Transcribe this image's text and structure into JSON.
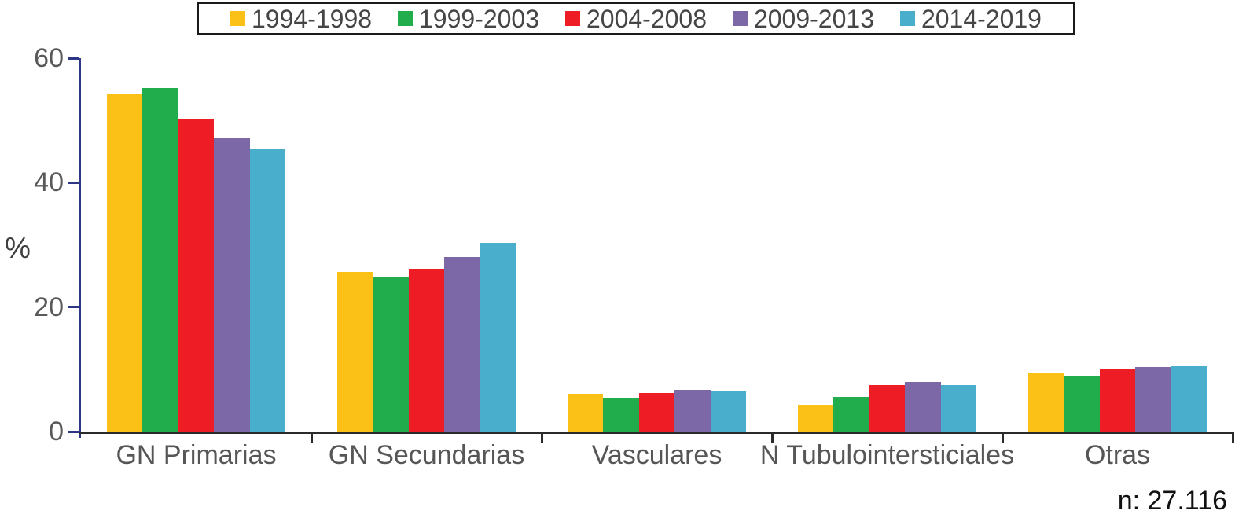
{
  "figure": {
    "ylabel": "%",
    "annotation": "n: 27.116"
  },
  "chart_data": {
    "type": "bar",
    "title": "",
    "xlabel": "",
    "ylabel": "%",
    "ylim": [
      0,
      60
    ],
    "y_ticks": [
      0,
      20,
      40,
      60
    ],
    "grid": false,
    "legend_position": "top",
    "annotation": "n: 27.116",
    "categories": [
      "GN Primarias",
      "GN Secundarias",
      "Vasculares",
      "N Tubulointersticiales",
      "Otras"
    ],
    "series": [
      {
        "name": "1994-1998",
        "color": "#FBC116",
        "values": [
          54.3,
          25.7,
          6.1,
          4.3,
          9.5
        ]
      },
      {
        "name": "1999-2003",
        "color": "#22AD4C",
        "values": [
          55.2,
          24.8,
          5.4,
          5.6,
          9.0
        ]
      },
      {
        "name": "2004-2008",
        "color": "#EE1D25",
        "values": [
          50.3,
          26.2,
          6.2,
          7.4,
          10.0
        ]
      },
      {
        "name": "2009-2013",
        "color": "#7C68A6",
        "values": [
          47.1,
          28.1,
          6.7,
          8.0,
          10.3
        ]
      },
      {
        "name": "2014-2019",
        "color": "#49AECB",
        "values": [
          45.4,
          30.3,
          6.6,
          7.5,
          10.6
        ]
      }
    ],
    "axis_colors": {
      "y_axis": "#2e3787",
      "x_axis": "#2b2b2b"
    }
  }
}
